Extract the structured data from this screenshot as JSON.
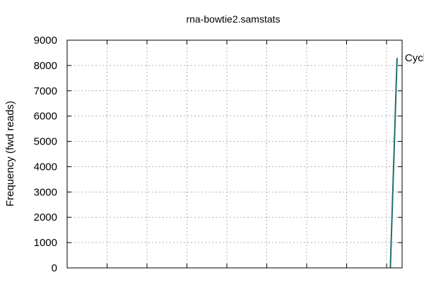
{
  "chart_data": {
    "type": "line",
    "title": "rna-bowtie2.samstats",
    "xlabel": "",
    "ylabel": "Frequency (fwd reads)",
    "ylim": [
      0,
      9000
    ],
    "yticks": [
      "0",
      "1000",
      "2000",
      "3000",
      "4000",
      "5000",
      "6000",
      "7000",
      "8000",
      "9000"
    ],
    "xlim": [
      0,
      100
    ],
    "xtick_count": 9,
    "grid": true,
    "series": [
      {
        "name": "Cycl",
        "color": "#1f6f6f",
        "x": [
          96.5,
          98.5
        ],
        "y": [
          0,
          8300
        ]
      }
    ]
  }
}
